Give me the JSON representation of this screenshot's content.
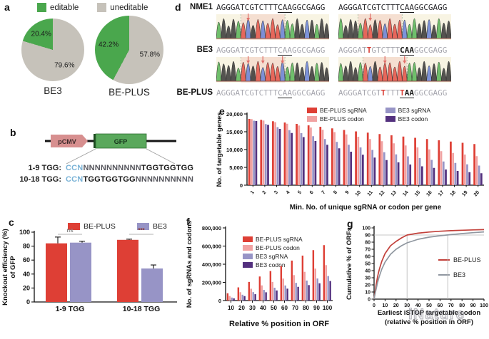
{
  "figure": {
    "panel_labels": {
      "a": "a",
      "b": "b",
      "c": "c",
      "d": "d",
      "e": "e",
      "f": "f",
      "g": "g"
    },
    "watermark": "iNature"
  },
  "panel_a": {
    "legend": [
      {
        "label": "editable",
        "color": "#4aa74d"
      },
      {
        "label": "uneditable",
        "color": "#c6c2ba"
      }
    ]
  },
  "panel_b": {
    "construct": {
      "promoter": "pCMV",
      "gene": "GFP"
    },
    "rows": [
      {
        "label": "1-9 TGG:",
        "segments": [
          {
            "t": "CCN",
            "s": "sCCN"
          },
          {
            "t": "NNNNNNNNNN",
            "s": "sN"
          },
          {
            "t": "TGGTGGTGG",
            "s": "sTGG"
          }
        ]
      },
      {
        "label": "10-18 TGG:",
        "segments": [
          {
            "t": "CCN",
            "s": "sCCN"
          },
          {
            "t": "TGGTGGTGG",
            "s": "sTGG"
          },
          {
            "t": "NNNNNNNNNN",
            "s": "sN"
          }
        ]
      }
    ]
  },
  "panel_d": {
    "row_labels": [
      "NME1",
      "BE3",
      "BE-PLUS"
    ],
    "base_colors": {
      "A": "#4cb04c",
      "C": "#5e7bd6",
      "G": "#2a2a2a",
      "T": "#e2483d"
    },
    "sites": [
      {
        "seqs": {
          "nme1": [
            {
              "t": "AGGGATCGTCTTT"
            },
            {
              "t": "CAA",
              "u": true
            },
            {
              "t": "GGCGAGG"
            }
          ],
          "be3": [
            {
              "t": "AGGGATCGTCTTT"
            },
            {
              "t": "CAA",
              "u": true
            },
            {
              "t": "GGCGAGG"
            }
          ],
          "beplus": [
            {
              "t": "AGGGATCGTCTTT"
            },
            {
              "t": "CAA",
              "u": true
            },
            {
              "t": "GGCGAGG"
            }
          ]
        },
        "chrom_top": {
          "seq": "AGGGATCGTCTTTCAAGGCGAGG",
          "arrows": [
            7
          ],
          "window": [
            6,
            14
          ],
          "seed": 1
        },
        "chrom_bottom": {
          "seq": "AGGGATCGTCTTTCAAGGCGAGG",
          "arrows": [
            7,
            10,
            14
          ],
          "window": [
            6,
            14
          ],
          "seed": 2
        }
      },
      {
        "seqs": {
          "nme1": [
            {
              "t": "AGGGATCGTCTTT"
            },
            {
              "t": "CAA",
              "u": true
            },
            {
              "t": "GGCGAGG"
            }
          ],
          "be3": [
            {
              "t": "AGGGAT"
            },
            {
              "t": "T",
              "red": true
            },
            {
              "t": "GTCTTT"
            },
            {
              "t": "CAA",
              "u": true,
              "dark": true
            },
            {
              "t": "GGCGAGG"
            }
          ],
          "beplus": [
            {
              "t": "AGGGATCGT"
            },
            {
              "t": "T",
              "red": true
            },
            {
              "t": "TTT"
            },
            {
              "t": "T",
              "red": true,
              "u": true
            },
            {
              "t": "AA",
              "dark": true,
              "u": true
            },
            {
              "t": "GGCGAGG"
            }
          ]
        },
        "chrom_top": {
          "seq": "AGGGATTGTCTTTCAAGGCGAGG",
          "arrows": [
            7
          ],
          "window": [
            5,
            13
          ],
          "seed": 3
        },
        "chrom_bottom": {
          "seq": "AGGGATCGTTTTTTAAGGCGAGG",
          "arrows": [
            10,
            14
          ],
          "window": [
            6,
            14
          ],
          "seed": 4
        }
      }
    ]
  },
  "chart_data": [
    {
      "id": "pie_be3",
      "type": "pie",
      "title": "BE3",
      "labels": [
        "editable",
        "uneditable"
      ],
      "values": [
        20.4,
        79.6
      ],
      "pct_labels": [
        "20.4%",
        "79.6%"
      ],
      "colors": [
        "#4aa74d",
        "#c6c2ba"
      ]
    },
    {
      "id": "pie_beplus",
      "type": "pie",
      "title": "BE-PLUS",
      "labels": [
        "editable",
        "uneditable"
      ],
      "values": [
        42.2,
        57.8
      ],
      "pct_labels": [
        "42.2%",
        "57.8%"
      ],
      "colors": [
        "#4aa74d",
        "#c6c2ba"
      ]
    },
    {
      "id": "knockout_efficiency",
      "type": "bar",
      "categories": [
        "1-9 TGG",
        "10-18 TGG"
      ],
      "series": [
        {
          "name": "BE-PLUS",
          "color": "#de3f35",
          "values": [
            84,
            89
          ],
          "errors": [
            9,
            1
          ]
        },
        {
          "name": "BE3",
          "color": "#9794c6",
          "values": [
            85,
            48
          ],
          "errors": [
            2,
            5
          ]
        }
      ],
      "significance": [
        {
          "label": "ns",
          "y": 97,
          "color": "#8a8a8a"
        },
        {
          "label": "***",
          "y": 97,
          "color": "#8d3b35"
        }
      ],
      "ylabel": [
        "Knockout efficiency (%)",
        "of GFP"
      ],
      "ylim": [
        0,
        100
      ],
      "yticks": [
        {
          "v": 0,
          "l": "0"
        },
        {
          "v": 20,
          "l": "20"
        },
        {
          "v": 40,
          "l": "40"
        },
        {
          "v": 60,
          "l": "60"
        },
        {
          "v": 80,
          "l": "80"
        },
        {
          "v": 100,
          "l": "100"
        }
      ]
    },
    {
      "id": "targetable_genes",
      "type": "bar",
      "categories": [
        "1",
        "2",
        "3",
        "4",
        "5",
        "6",
        "7",
        "8",
        "9",
        "10",
        "11",
        "12",
        "13",
        "14",
        "15",
        "16",
        "17",
        "18",
        "19",
        "20"
      ],
      "series": [
        {
          "name": "BE-PLUS sgRNA",
          "color": "#de3f35",
          "values": [
            18600,
            18350,
            17950,
            17600,
            17200,
            16800,
            16400,
            15950,
            15500,
            15100,
            14750,
            14350,
            14000,
            13650,
            13300,
            12950,
            12600,
            12250,
            11900,
            11550
          ]
        },
        {
          "name": "BE-PLUS codon",
          "color": "#f1a2a2",
          "values": [
            18550,
            18150,
            17700,
            17250,
            16750,
            16200,
            15550,
            14900,
            14250,
            13600,
            12950,
            12350,
            11750,
            11150,
            10600,
            10050,
            9550,
            9050,
            8600,
            8150
          ]
        },
        {
          "name": "BE3 sgRNA",
          "color": "#9794c6",
          "values": [
            18100,
            17150,
            16300,
            15450,
            14600,
            13750,
            12950,
            12150,
            11350,
            10600,
            9900,
            9250,
            8650,
            8100,
            7600,
            7100,
            6650,
            6250,
            5850,
            5500
          ]
        },
        {
          "name": "BE3 codon",
          "color": "#53307e",
          "values": [
            18000,
            16950,
            15800,
            14650,
            13500,
            12400,
            11350,
            10350,
            9400,
            8550,
            7750,
            7050,
            6400,
            5800,
            5300,
            4850,
            4400,
            4000,
            3650,
            3350
          ]
        }
      ],
      "xlabel": "Min. No. of unique sgRNA or codon per gene",
      "ylabel": [
        "No. of targetable genes"
      ],
      "ylim": [
        0,
        20000
      ],
      "yticks": [
        {
          "v": 0,
          "l": "0"
        },
        {
          "v": 5000,
          "l": "5,000"
        },
        {
          "v": 10000,
          "l": "10,000"
        },
        {
          "v": 15000,
          "l": "15,000"
        },
        {
          "v": 20000,
          "l": "20,000"
        }
      ]
    },
    {
      "id": "sgrnas_and_codons",
      "type": "bar",
      "categories": [
        "10",
        "20",
        "30",
        "40",
        "50",
        "60",
        "70",
        "80",
        "90",
        "100"
      ],
      "series": [
        {
          "name": "BE-PLUS sgRNA",
          "color": "#de3f35",
          "values": [
            80000,
            145000,
            205000,
            265000,
            325000,
            380000,
            440000,
            495000,
            555000,
            610000
          ]
        },
        {
          "name": "BE-PLUS codon",
          "color": "#f1a2a2",
          "values": [
            50000,
            92000,
            130000,
            167000,
            205000,
            242000,
            280000,
            316000,
            352000,
            390000
          ]
        },
        {
          "name": "BE3 sgRNA",
          "color": "#9794c6",
          "values": [
            33000,
            64000,
            93000,
            117000,
            141000,
            166000,
            195000,
            220000,
            243000,
            270000
          ]
        },
        {
          "name": "BE3 codon",
          "color": "#53307e",
          "values": [
            24000,
            49000,
            70000,
            91000,
            111000,
            131000,
            151000,
            170000,
            190000,
            215000
          ]
        }
      ],
      "xlabel": "Relative % position in ORF",
      "ylabel": [
        "No. of sgRNAs and codons"
      ],
      "ylim": [
        0,
        800000
      ],
      "yticks": [
        {
          "v": 0,
          "l": "0"
        },
        {
          "v": 200000,
          "l": "200,000"
        },
        {
          "v": 400000,
          "l": "400,000"
        },
        {
          "v": 600000,
          "l": "600,000"
        },
        {
          "v": 800000,
          "l": "800,000"
        }
      ]
    },
    {
      "id": "cumulative_orfs",
      "type": "line",
      "x": [
        0,
        1,
        2,
        3,
        4,
        5,
        7,
        10,
        15,
        20,
        25,
        30,
        40,
        50,
        60,
        70,
        80,
        90,
        100
      ],
      "series": [
        {
          "name": "BE-PLUS",
          "color": "#c2403a",
          "y": [
            0,
            11,
            21,
            30,
            37,
            43,
            53,
            64,
            75,
            81,
            86,
            90,
            92.6,
            94.2,
            95.3,
            96.1,
            96.7,
            97.2,
            97.6
          ]
        },
        {
          "name": "BE3",
          "color": "#9097a0",
          "y": [
            0,
            8,
            15,
            22,
            28,
            33,
            42,
            52,
            63,
            70,
            75,
            79,
            84,
            87,
            89,
            90.6,
            92,
            93.3,
            94.4
          ]
        }
      ],
      "ref_h": 90,
      "ref_v": [
        30,
        67
      ],
      "xticks": [
        0,
        10,
        20,
        30,
        40,
        50,
        60,
        70,
        80,
        90,
        100
      ],
      "yticks": [
        0,
        10,
        20,
        30,
        40,
        50,
        60,
        70,
        80,
        90,
        100
      ],
      "xlabel": [
        "Earliest iSTOP targetable codon",
        "(relative % position in ORF)"
      ],
      "ylabel": "Cumulative % of ORFs",
      "xlim": [
        0,
        100
      ],
      "ylim": [
        0,
        100
      ]
    }
  ]
}
